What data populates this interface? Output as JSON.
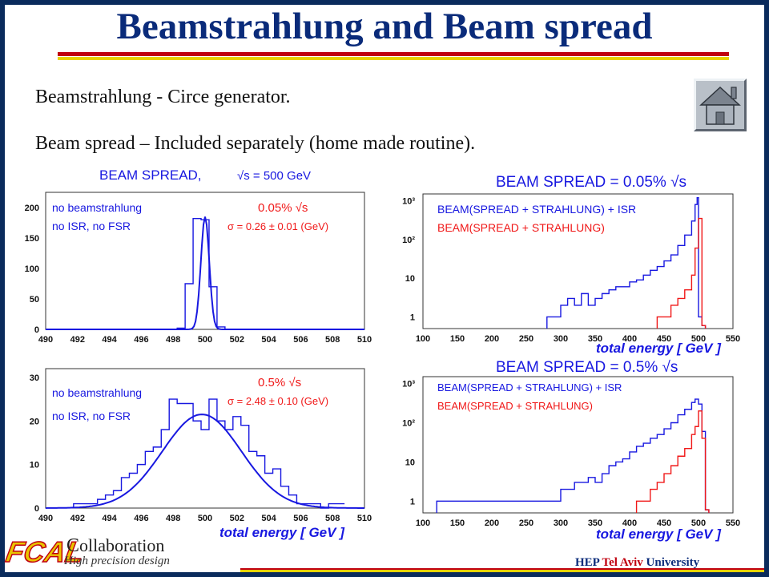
{
  "slide": {
    "title": "Beamstrahlung and Beam spread",
    "line1": "Beamstrahlung - Circe generator.",
    "line2": "Beam spread – Included separately (home made routine).",
    "home_icon": "house-icon"
  },
  "footer": {
    "logo": "FCAL",
    "collaboration_initial": "C",
    "collaboration_rest": "ollaboration",
    "tagline": "High precision design",
    "hep_a": "HEP ",
    "hep_b": "Tel Aviv",
    "hep_c": " University"
  },
  "colors": {
    "blue": "#1818e0",
    "red": "#f01818",
    "title_blue": "#0a2b7a"
  },
  "chart_data": [
    {
      "type": "line",
      "title_a": "BEAM SPREAD,",
      "title_b": "√s = 500 GeV",
      "legend": [
        "no beamstrahlung",
        "no ISR, no FSR"
      ],
      "note_a": "0.05% √s",
      "note_b": "σ = 0.26 ± 0.01 (GeV)",
      "xlim": [
        490,
        510
      ],
      "ylim": [
        0,
        225
      ],
      "xticks": [
        "490",
        "492",
        "494",
        "496",
        "498",
        "500",
        "502",
        "504",
        "506",
        "508",
        "510"
      ],
      "yticks": [
        "0",
        "50",
        "100",
        "150",
        "200"
      ],
      "hist_x": [
        498.5,
        499,
        499.5,
        500,
        500.5,
        501,
        501.5
      ],
      "hist_y": [
        2,
        75,
        182,
        180,
        70,
        4,
        0
      ],
      "fit": {
        "mean": 500,
        "sigma": 0.26,
        "amp": 185
      }
    },
    {
      "type": "line",
      "title": "BEAM SPREAD = 0.05% √s",
      "legend": [
        "BEAM(SPREAD + STRAHLUNG) + ISR",
        "BEAM(SPREAD + STRAHLUNG)"
      ],
      "xlim": [
        100,
        550
      ],
      "log_ylim": [
        0.5,
        1500
      ],
      "xticks": [
        "100",
        "150",
        "200",
        "250",
        "300",
        "350",
        "400",
        "450",
        "500",
        "550"
      ],
      "yticks": [
        "1",
        "10",
        "10²",
        "10³"
      ],
      "xlabel": "total energy [ GeV ]",
      "blue_x": [
        280,
        290,
        300,
        310,
        320,
        330,
        340,
        350,
        360,
        370,
        380,
        390,
        400,
        410,
        420,
        430,
        440,
        450,
        460,
        470,
        480,
        490,
        495,
        498,
        500,
        505
      ],
      "blue_y": [
        1,
        1,
        2,
        3,
        2,
        4,
        2,
        3,
        4,
        5,
        6,
        6,
        8,
        9,
        12,
        16,
        20,
        28,
        40,
        70,
        130,
        300,
        800,
        1200,
        1,
        0.6
      ],
      "red_x": [
        440,
        450,
        460,
        470,
        480,
        490,
        495,
        500,
        505
      ],
      "red_y": [
        1,
        1,
        2,
        3,
        5,
        12,
        60,
        350,
        0.6
      ]
    },
    {
      "type": "line",
      "title": "",
      "legend": [
        "no beamstrahlung",
        "no ISR, no FSR"
      ],
      "note_a": "0.5% √s",
      "note_b": "σ = 2.48 ± 0.10 (GeV)",
      "xlim": [
        490,
        510
      ],
      "ylim": [
        0,
        32
      ],
      "xticks": [
        "490",
        "492",
        "494",
        "496",
        "498",
        "500",
        "502",
        "504",
        "506",
        "508",
        "510"
      ],
      "yticks": [
        "0",
        "10",
        "20",
        "30"
      ],
      "xlabel": "total energy [ GeV ]",
      "hist_x": [
        492,
        492.5,
        493,
        493.5,
        494,
        494.5,
        495,
        495.5,
        496,
        496.5,
        497,
        497.5,
        498,
        498.5,
        499,
        499.5,
        500,
        500.5,
        501,
        501.5,
        502,
        502.5,
        503,
        503.5,
        504,
        504.5,
        505,
        505.5,
        506,
        506.5,
        507,
        507.5,
        508,
        508.5
      ],
      "hist_y": [
        1,
        1,
        1,
        2,
        3,
        4,
        7,
        8,
        10,
        13,
        14,
        18,
        25,
        24,
        24,
        20,
        18,
        25,
        20,
        18,
        21,
        19,
        13,
        12,
        8,
        9,
        5,
        3,
        1,
        1,
        1,
        0,
        1,
        1
      ],
      "fit": {
        "mean": 499.8,
        "sigma": 2.48,
        "amp": 21.5
      }
    },
    {
      "type": "line",
      "title": "BEAM SPREAD = 0.5% √s",
      "legend": [
        "BEAM(SPREAD + STRAHLUNG) + ISR",
        "BEAM(SPREAD + STRAHLUNG)"
      ],
      "xlim": [
        100,
        550
      ],
      "log_ylim": [
        0.5,
        1500
      ],
      "xticks": [
        "100",
        "150",
        "200",
        "250",
        "300",
        "350",
        "400",
        "450",
        "500",
        "550"
      ],
      "yticks": [
        "1",
        "10",
        "10²",
        "10³"
      ],
      "xlabel": "total energy [ GeV ]",
      "blue_x": [
        120,
        150,
        290,
        300,
        320,
        340,
        350,
        360,
        370,
        380,
        390,
        400,
        410,
        420,
        430,
        440,
        450,
        460,
        470,
        480,
        490,
        495,
        500,
        505,
        510
      ],
      "blue_y": [
        1,
        1,
        1,
        2,
        3,
        4,
        3,
        5,
        8,
        10,
        12,
        18,
        25,
        30,
        40,
        50,
        70,
        100,
        160,
        220,
        330,
        400,
        300,
        60,
        0.6
      ],
      "red_x": [
        410,
        420,
        430,
        440,
        450,
        460,
        470,
        480,
        490,
        495,
        500,
        505,
        510
      ],
      "red_y": [
        1,
        1,
        2,
        3,
        5,
        8,
        14,
        22,
        50,
        80,
        200,
        40,
        0.6
      ]
    }
  ]
}
